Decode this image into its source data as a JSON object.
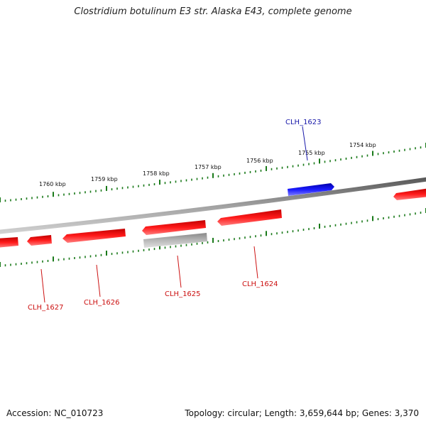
{
  "title": "Clostridium botulinum E3 str. Alaska E43, complete genome",
  "footer": {
    "accession": "Accession: NC_010723",
    "stats": "Topology: circular; Length: 3,659,644 bp; Genes: 3,370"
  },
  "colors": {
    "forward_gene": "#1010dd",
    "reverse_gene": "#e01010",
    "other_gene": "#b0b0b0",
    "backbone": "#808080",
    "ticks": "#1a7a1a",
    "forward_label": "#1a1aaa",
    "reverse_label": "#cc1111"
  },
  "scale_labels": [
    "1754 kbp",
    "1755 kbp",
    "1756 kbp",
    "1757 kbp",
    "1758 kbp",
    "1759 kbp",
    "1760 kbp"
  ],
  "gene_labels": {
    "clh_1623": "CLH_1623",
    "clh_1624": "CLH_1624",
    "clh_1625": "CLH_1625",
    "clh_1626": "CLH_1626",
    "clh_1627": "CLH_1627"
  }
}
